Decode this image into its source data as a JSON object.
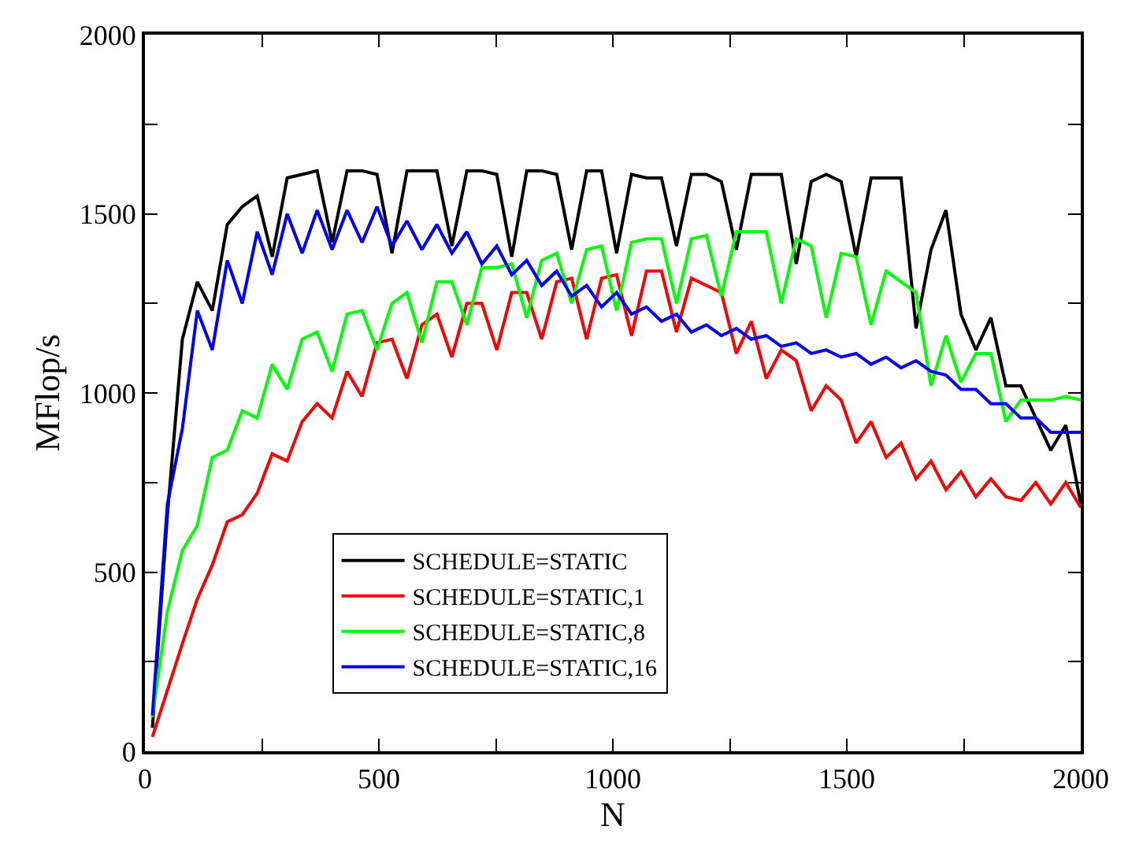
{
  "chart_data": {
    "type": "line",
    "xlabel": "N",
    "ylabel": "MFlop/s",
    "x": [
      16,
      48,
      80,
      112,
      144,
      176,
      208,
      240,
      272,
      304,
      336,
      368,
      400,
      432,
      464,
      496,
      528,
      560,
      592,
      624,
      656,
      688,
      720,
      752,
      784,
      816,
      848,
      880,
      912,
      944,
      976,
      1008,
      1040,
      1072,
      1104,
      1136,
      1168,
      1200,
      1232,
      1264,
      1296,
      1328,
      1360,
      1392,
      1424,
      1456,
      1488,
      1520,
      1552,
      1584,
      1616,
      1648,
      1680,
      1712,
      1744,
      1776,
      1808,
      1840,
      1872,
      1904,
      1936,
      1968,
      2000
    ],
    "series": [
      {
        "name": "SCHEDULE=STATIC",
        "color": "#000000",
        "values": [
          65,
          660,
          1150,
          1310,
          1230,
          1470,
          1520,
          1550,
          1380,
          1600,
          1610,
          1620,
          1420,
          1620,
          1620,
          1610,
          1390,
          1620,
          1620,
          1620,
          1410,
          1620,
          1620,
          1610,
          1380,
          1620,
          1620,
          1610,
          1400,
          1620,
          1620,
          1390,
          1610,
          1600,
          1600,
          1410,
          1610,
          1610,
          1590,
          1400,
          1610,
          1610,
          1610,
          1360,
          1590,
          1610,
          1590,
          1380,
          1600,
          1600,
          1600,
          1180,
          1400,
          1510,
          1220,
          1120,
          1210,
          1020,
          1020,
          930,
          840,
          910,
          690
        ]
      },
      {
        "name": "SCHEDULE=STATIC,1",
        "color": "#ff0000",
        "values": [
          40,
          170,
          300,
          425,
          520,
          640,
          660,
          720,
          830,
          810,
          920,
          970,
          930,
          1060,
          990,
          1140,
          1150,
          1040,
          1190,
          1220,
          1100,
          1250,
          1250,
          1120,
          1280,
          1280,
          1150,
          1310,
          1320,
          1150,
          1320,
          1330,
          1160,
          1340,
          1340,
          1170,
          1320,
          1300,
          1280,
          1110,
          1200,
          1040,
          1120,
          1090,
          950,
          1020,
          980,
          860,
          920,
          820,
          860,
          760,
          810,
          730,
          780,
          710,
          760,
          710,
          700,
          750,
          690,
          750,
          680
        ]
      },
      {
        "name": "SCHEDULE=STATIC,8",
        "color": "#00ff00",
        "values": [
          95,
          390,
          560,
          630,
          820,
          840,
          950,
          930,
          1080,
          1010,
          1150,
          1170,
          1060,
          1220,
          1230,
          1120,
          1250,
          1280,
          1140,
          1310,
          1310,
          1190,
          1350,
          1350,
          1360,
          1210,
          1370,
          1390,
          1250,
          1400,
          1410,
          1230,
          1420,
          1430,
          1430,
          1250,
          1430,
          1440,
          1270,
          1450,
          1450,
          1450,
          1250,
          1430,
          1410,
          1210,
          1390,
          1380,
          1190,
          1340,
          1310,
          1280,
          1020,
          1160,
          1030,
          1110,
          1110,
          920,
          980,
          980,
          980,
          990,
          980
        ]
      },
      {
        "name": "SCHEDULE=STATIC,16",
        "color": "#0000ff",
        "values": [
          100,
          690,
          900,
          1230,
          1120,
          1370,
          1250,
          1450,
          1330,
          1500,
          1390,
          1510,
          1400,
          1510,
          1420,
          1520,
          1410,
          1480,
          1400,
          1470,
          1390,
          1450,
          1360,
          1410,
          1330,
          1370,
          1300,
          1340,
          1270,
          1300,
          1240,
          1280,
          1220,
          1240,
          1200,
          1220,
          1170,
          1190,
          1160,
          1180,
          1150,
          1160,
          1130,
          1140,
          1110,
          1120,
          1100,
          1110,
          1080,
          1100,
          1070,
          1090,
          1060,
          1050,
          1010,
          1010,
          970,
          970,
          930,
          930,
          890,
          890,
          890
        ]
      }
    ],
    "xlim": [
      0,
      2000
    ],
    "xticks": [
      0,
      {
        "value": 250,
        "label": null
      },
      500,
      {
        "value": 750,
        "label": null
      },
      1000,
      {
        "value": 1250,
        "label": null
      },
      1500,
      {
        "value": 1750,
        "label": null
      },
      2000
    ],
    "ylim": [
      0,
      2000
    ],
    "yticks": [
      0,
      {
        "value": 250,
        "label": null
      },
      500,
      {
        "value": 750,
        "label": null
      },
      1000,
      {
        "value": 1250,
        "label": null
      },
      1500,
      {
        "value": 1750,
        "label": null
      },
      2000
    ],
    "legend": "bottom left",
    "marker": "none",
    "line_style": "solid"
  }
}
